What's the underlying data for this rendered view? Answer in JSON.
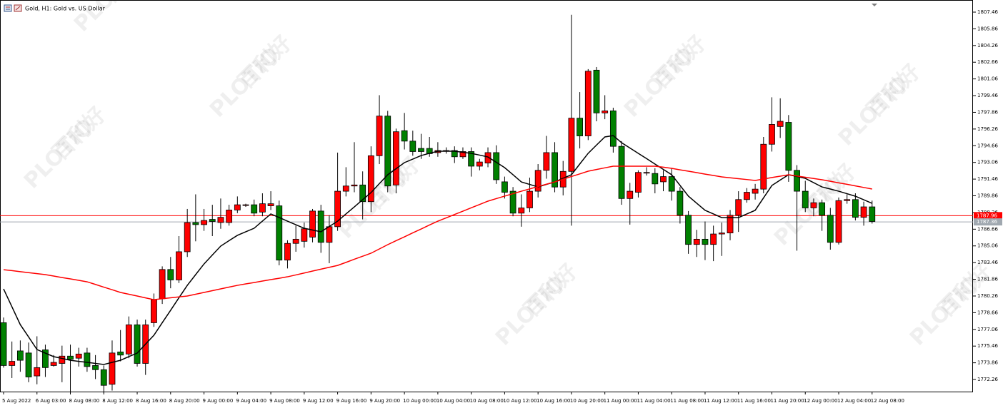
{
  "chart_data": {
    "type": "candlestick",
    "title": "Gold, H1:  Gold vs. US Dollar",
    "watermark": {
      "brand": "PLOTIO",
      "chinese": "百利好"
    },
    "categories": [
      "5 Aug 2022",
      null,
      null,
      null,
      "6 Aug 03:00",
      null,
      null,
      null,
      "8 Aug 08:00",
      null,
      null,
      null,
      "8 Aug 12:00",
      null,
      null,
      null,
      "8 Aug 16:00",
      null,
      null,
      null,
      "8 Aug 20:00",
      null,
      null,
      null,
      "9 Aug 00:00",
      null,
      null,
      null,
      "9 Aug 04:00",
      null,
      null,
      null,
      "9 Aug 08:00",
      null,
      null,
      null,
      "9 Aug 12:00",
      null,
      null,
      null,
      "9 Aug 16:00",
      null,
      null,
      null,
      "9 Aug 20:00",
      null,
      null,
      null,
      "10 Aug 00:00",
      null,
      null,
      null,
      "10 Aug 04:00",
      null,
      null,
      null,
      "10 Aug 08:00",
      null,
      null,
      null,
      "10 Aug 12:00",
      null,
      null,
      null,
      "10 Aug 16:00",
      null,
      null,
      null,
      "10 Aug 20:00",
      null,
      null,
      null,
      "11 Aug 00:00",
      null,
      null,
      null,
      "11 Aug 04:00",
      null,
      null,
      null,
      "11 Aug 08:00",
      null,
      null,
      null,
      "11 Aug 12:00",
      null,
      null,
      null,
      "11 Aug 16:00",
      null,
      null,
      null,
      "11 Aug 20:00",
      null,
      null,
      null,
      "12 Aug 00:00",
      null,
      null,
      null,
      "12 Aug 04:00",
      null,
      null,
      null,
      "12 Aug 08:00"
    ],
    "open": [
      1777.7,
      1773.6,
      1775.0,
      1774.8,
      1772.6,
      1775.1,
      1773.6,
      1773.8,
      1774.5,
      1774.3,
      1774.8,
      1773.6,
      1773.2,
      1771.8,
      1774.9,
      1774.7,
      1777.5,
      1773.8,
      1777.7,
      1780.0,
      1782.8,
      1781.8,
      1784.5,
      1787.3,
      1787.1,
      1787.6,
      1787.3,
      1787.3,
      1788.5,
      1789.0,
      1789.0,
      1788.3,
      1788.9,
      1788.9,
      1783.7,
      1785.3,
      1785.5,
      1785.9,
      1788.4,
      1785.4,
      1786.9,
      1790.3,
      1790.8,
      1790.9,
      1789.3,
      1793.7,
      1797.5,
      1790.9,
      1796.1,
      1795.1,
      1794.4,
      1794.4,
      1794.0,
      1794.2,
      1794.2,
      1793.6,
      1794.1,
      1792.7,
      1793.0,
      1794.0,
      1791.2,
      1790.3,
      1788.2,
      1788.7,
      1790.3,
      1792.3,
      1794.0,
      1790.7,
      1792.2,
      1797.3,
      1795.6,
      1801.9,
      1797.8,
      1798.0,
      1794.6,
      1789.6,
      1790.2,
      1792.1,
      1792.0,
      1791.2,
      1791.7,
      1790.3,
      1788.0,
      1785.2,
      1785.7,
      1785.2,
      1786.2,
      1786.3,
      1788.0,
      1789.5,
      1790.1,
      1790.5,
      1794.8,
      1796.5,
      1796.9,
      1792.3,
      1790.3,
      1788.7,
      1789.2,
      1788.0,
      1785.4,
      1789.4,
      1789.5,
      1787.8,
      1788.8
    ],
    "high": [
      1778.2,
      1775.9,
      1776.0,
      1775.8,
      1776.4,
      1775.6,
      1774.6,
      1775.5,
      1775.6,
      1775.3,
      1775.3,
      1774.6,
      1773.6,
      1776.0,
      1777.0,
      1778.3,
      1778.0,
      1778.0,
      1780.5,
      1783.1,
      1784.0,
      1786.0,
      1788.6,
      1790.0,
      1788.6,
      1789.0,
      1789.6,
      1789.0,
      1789.8,
      1789.1,
      1789.5,
      1790.1,
      1790.3,
      1789.4,
      1785.6,
      1787.0,
      1787.3,
      1788.6,
      1789.0,
      1788.0,
      1794.0,
      1792.6,
      1795.0,
      1792.2,
      1794.6,
      1799.5,
      1798.0,
      1796.3,
      1797.8,
      1796.1,
      1795.8,
      1795.5,
      1795.0,
      1794.5,
      1794.6,
      1794.5,
      1794.5,
      1793.4,
      1794.5,
      1794.7,
      1791.7,
      1790.7,
      1790.0,
      1791.6,
      1792.9,
      1795.6,
      1795.0,
      1793.2,
      1807.2,
      1799.8,
      1802.0,
      1802.2,
      1799.5,
      1798.3,
      1795.1,
      1791.1,
      1792.3,
      1792.6,
      1792.5,
      1792.3,
      1792.5,
      1790.7,
      1788.4,
      1786.6,
      1787.4,
      1787.0,
      1787.3,
      1788.5,
      1790.3,
      1790.6,
      1791.0,
      1795.5,
      1799.3,
      1799.2,
      1797.6,
      1792.8,
      1791.3,
      1789.6,
      1789.5,
      1788.7,
      1789.7,
      1790.0,
      1790.1,
      1789.3,
      1789.4
    ],
    "low": [
      1773.4,
      1772.4,
      1773.0,
      1772.0,
      1771.8,
      1772.5,
      1773.5,
      1772.0,
      1771.0,
      1773.5,
      1773.0,
      1772.3,
      1771.0,
      1771.2,
      1774.0,
      1774.3,
      1773.5,
      1772.7,
      1777.3,
      1779.5,
      1781.0,
      1781.5,
      1784.0,
      1785.5,
      1786.5,
      1786.0,
      1786.7,
      1787.0,
      1788.2,
      1788.8,
      1787.9,
      1787.9,
      1788.5,
      1783.2,
      1782.9,
      1784.5,
      1784.9,
      1785.4,
      1784.4,
      1783.4,
      1786.5,
      1789.8,
      1790.2,
      1787.6,
      1788.3,
      1792.9,
      1790.2,
      1790.1,
      1794.3,
      1793.7,
      1793.4,
      1793.6,
      1793.6,
      1793.9,
      1793.0,
      1793.4,
      1791.7,
      1792.3,
      1792.6,
      1791.0,
      1789.6,
      1787.9,
      1786.9,
      1788.3,
      1789.7,
      1791.5,
      1790.2,
      1789.9,
      1787.0,
      1794.4,
      1795.2,
      1797.0,
      1797.2,
      1794.0,
      1789.0,
      1787.1,
      1789.7,
      1791.8,
      1790.1,
      1790.3,
      1789.4,
      1787.2,
      1784.3,
      1784.0,
      1783.7,
      1783.6,
      1784.1,
      1785.6,
      1786.4,
      1789.2,
      1789.5,
      1790.1,
      1794.1,
      1795.4,
      1791.2,
      1784.6,
      1788.3,
      1787.9,
      1786.5,
      1784.7,
      1785.2,
      1789.1,
      1787.5,
      1787.0,
      1787.2
    ],
    "close": [
      1773.6,
      1774.0,
      1774.1,
      1772.5,
      1773.4,
      1773.4,
      1773.9,
      1774.5,
      1774.2,
      1774.7,
      1773.5,
      1773.2,
      1771.7,
      1774.8,
      1774.6,
      1777.5,
      1773.8,
      1777.5,
      1779.9,
      1782.8,
      1781.8,
      1784.5,
      1787.3,
      1787.1,
      1787.5,
      1787.4,
      1787.8,
      1788.5,
      1789.0,
      1789.0,
      1788.2,
      1789.1,
      1789.1,
      1783.7,
      1785.3,
      1785.7,
      1786.7,
      1788.4,
      1785.4,
      1786.9,
      1790.3,
      1790.8,
      1790.9,
      1789.3,
      1793.7,
      1797.5,
      1790.8,
      1796.0,
      1795.1,
      1794.1,
      1794.1,
      1793.9,
      1794.2,
      1794.2,
      1793.6,
      1794.1,
      1792.7,
      1793.1,
      1794.0,
      1791.4,
      1790.2,
      1788.2,
      1788.7,
      1790.3,
      1792.3,
      1794.0,
      1790.7,
      1792.2,
      1797.3,
      1795.6,
      1801.8,
      1797.8,
      1798.0,
      1794.6,
      1789.6,
      1790.3,
      1792.1,
      1792.1,
      1791.0,
      1791.7,
      1790.3,
      1788.0,
      1785.2,
      1785.7,
      1785.2,
      1786.2,
      1786.3,
      1788.0,
      1789.5,
      1790.2,
      1790.5,
      1794.8,
      1796.7,
      1797.0,
      1792.3,
      1790.3,
      1788.7,
      1789.2,
      1788.0,
      1785.4,
      1789.4,
      1789.5,
      1787.8,
      1788.8,
      1787.4
    ],
    "up_color": "#ff0000",
    "down_color": "#008000",
    "lines": [
      {
        "color": "#000000",
        "values": [
          1780.94,
          1779.23,
          1777.52,
          1776.33,
          1775.13,
          1774.79,
          1774.45,
          1774.28,
          1774.1,
          1774.0,
          1773.9,
          1773.8,
          1773.7,
          1773.9,
          1774.1,
          1774.45,
          1774.79,
          1775.65,
          1776.5,
          1777.7,
          1778.89,
          1780.09,
          1781.28,
          1782.31,
          1783.33,
          1784.19,
          1785.04,
          1785.56,
          1786.07,
          1786.41,
          1786.75,
          1787.44,
          1788.12,
          1787.78,
          1787.43,
          1787.09,
          1786.75,
          1786.58,
          1786.41,
          1786.92,
          1787.43,
          1788.12,
          1788.8,
          1789.49,
          1790.17,
          1791.03,
          1791.88,
          1792.46,
          1793.04,
          1793.38,
          1793.72,
          1793.93,
          1794.13,
          1794.13,
          1794.13,
          1794.03,
          1793.93,
          1793.76,
          1793.58,
          1793.07,
          1792.56,
          1791.88,
          1791.19,
          1790.95,
          1790.71,
          1790.95,
          1791.19,
          1791.54,
          1791.88,
          1792.91,
          1793.93,
          1794.72,
          1795.5,
          1795.63,
          1794.95,
          1794.44,
          1793.93,
          1793.42,
          1792.9,
          1792.39,
          1791.88,
          1790.86,
          1789.83,
          1789.15,
          1788.47,
          1788.12,
          1787.77,
          1787.77,
          1787.77,
          1788.12,
          1788.47,
          1789.66,
          1790.85,
          1791.37,
          1791.88,
          1791.71,
          1791.53,
          1791.12,
          1790.71,
          1790.51,
          1790.3,
          1790.06,
          1789.82,
          1789.48,
          1789.14
        ]
      },
      {
        "color": "#ff0000",
        "values": [
          1782.78,
          1782.69,
          1782.59,
          1782.5,
          1782.4,
          1782.31,
          1782.17,
          1782.03,
          1781.9,
          1781.76,
          1781.62,
          1781.37,
          1781.11,
          1780.86,
          1780.6,
          1780.43,
          1780.26,
          1780.08,
          1779.91,
          1780.0,
          1780.09,
          1780.17,
          1780.26,
          1780.43,
          1780.6,
          1780.77,
          1780.94,
          1781.11,
          1781.28,
          1781.42,
          1781.55,
          1781.69,
          1781.83,
          1781.96,
          1782.1,
          1782.28,
          1782.46,
          1782.65,
          1782.83,
          1783.01,
          1783.19,
          1783.48,
          1783.78,
          1784.07,
          1784.36,
          1784.77,
          1785.18,
          1785.56,
          1785.93,
          1786.31,
          1786.68,
          1787.06,
          1787.43,
          1787.75,
          1788.07,
          1788.39,
          1788.71,
          1789.03,
          1789.35,
          1789.59,
          1789.83,
          1790.06,
          1790.3,
          1790.52,
          1790.75,
          1790.97,
          1791.19,
          1791.45,
          1791.71,
          1791.96,
          1792.22,
          1792.38,
          1792.54,
          1792.7,
          1792.7,
          1792.7,
          1792.7,
          1792.7,
          1792.7,
          1792.6,
          1792.49,
          1792.35,
          1792.22,
          1792.08,
          1791.94,
          1791.81,
          1791.67,
          1791.59,
          1791.5,
          1791.42,
          1791.33,
          1791.47,
          1791.61,
          1791.74,
          1791.88,
          1791.76,
          1791.64,
          1791.52,
          1791.4,
          1791.25,
          1791.1,
          1790.96,
          1790.81,
          1790.66,
          1790.51
        ]
      }
    ],
    "price_lines": [
      {
        "value": 1787.96,
        "color": "#ff0000"
      },
      {
        "value": 1787.36,
        "color": "#a0a8b0"
      }
    ],
    "ylim": [
      1771.1,
      1808.28
    ],
    "yticks": [
      1772.26,
      1773.86,
      1775.46,
      1777.06,
      1778.66,
      1780.26,
      1781.86,
      1783.46,
      1785.06,
      1786.66,
      1788.26,
      1789.86,
      1791.46,
      1793.06,
      1794.66,
      1796.26,
      1797.86,
      1799.46,
      1801.06,
      1802.66,
      1804.26,
      1805.86,
      1807.46
    ]
  }
}
